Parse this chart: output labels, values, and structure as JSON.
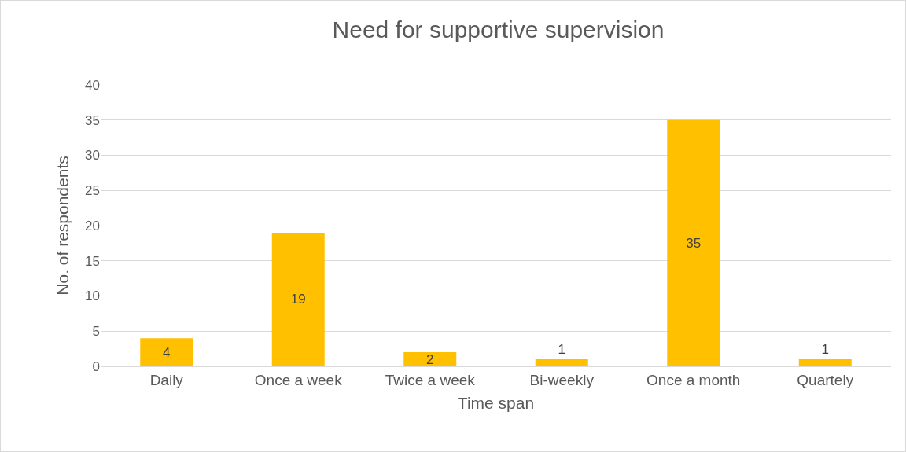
{
  "chart_data": {
    "type": "bar",
    "title": "Need for supportive supervision",
    "xlabel": "Time span",
    "ylabel": "No. of respondents",
    "categories": [
      "Daily",
      "Once a week",
      "Twice a week",
      "Bi-weekly",
      "Once a month",
      "Quartely"
    ],
    "values": [
      4,
      19,
      2,
      1,
      35,
      1
    ],
    "color": "#ffc000",
    "ylim": [
      0,
      40
    ],
    "yticks": [
      0,
      5,
      10,
      15,
      20,
      25,
      30,
      35,
      40
    ],
    "grid": "y",
    "data_labels": true
  }
}
